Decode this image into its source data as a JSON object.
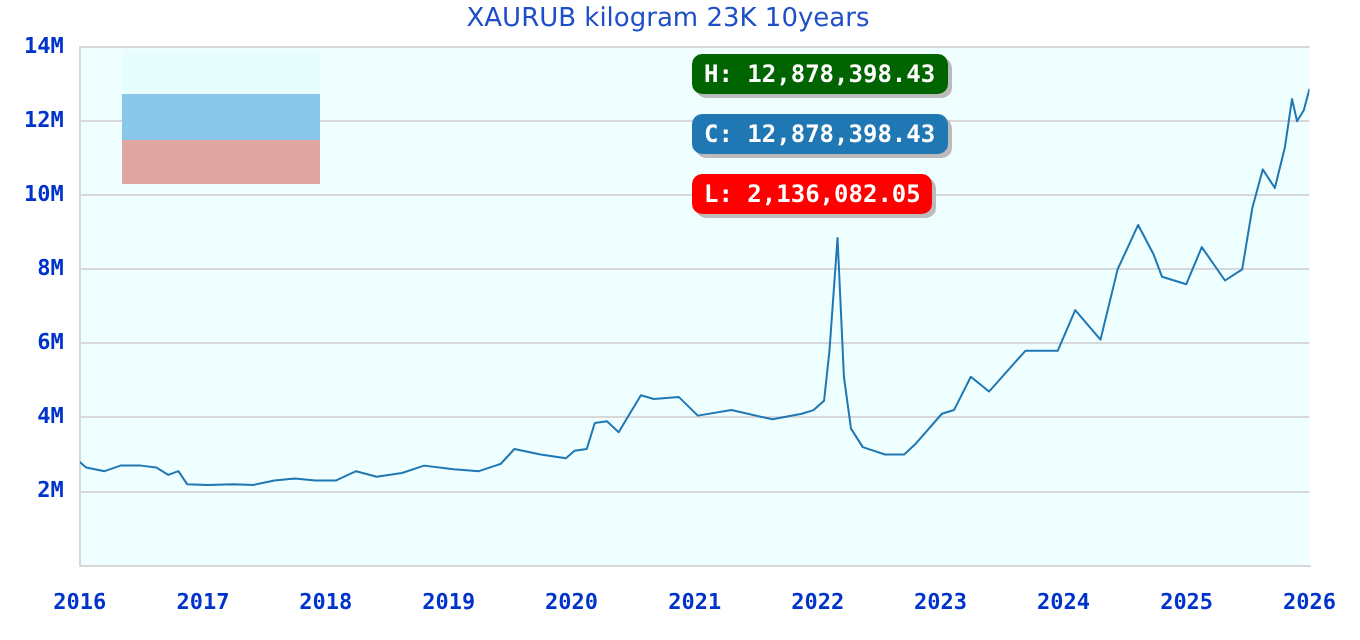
{
  "chart_data": {
    "type": "line",
    "title": "XAURUB kilogram 23K 10years",
    "x": [
      "2016-01-01",
      "2016-01-20",
      "2016-03-15",
      "2016-05-01",
      "2016-07-01",
      "2016-08-15",
      "2016-09-20",
      "2016-10-20",
      "2016-11-15",
      "2017-01-15",
      "2017-04-01",
      "2017-06-01",
      "2017-08-01",
      "2017-10-01",
      "2017-12-01",
      "2018-02-01",
      "2018-04-01",
      "2018-06-01",
      "2018-08-15",
      "2018-10-20",
      "2019-01-15",
      "2019-04-01",
      "2019-05-20",
      "2019-06-05",
      "2019-07-15",
      "2019-10-01",
      "2019-12-15",
      "2020-01-10",
      "2020-02-15",
      "2020-03-10",
      "2020-04-15",
      "2020-05-20",
      "2020-06-15",
      "2020-07-25",
      "2020-09-01",
      "2020-11-15",
      "2021-01-10",
      "2021-04-20",
      "2021-08-20",
      "2021-11-15",
      "2021-12-20",
      "2022-01-20",
      "2022-02-05",
      "2022-03-01",
      "2022-03-20",
      "2022-04-10",
      "2022-05-15",
      "2022-07-20",
      "2022-09-15",
      "2022-10-20",
      "2023-01-05",
      "2023-02-10",
      "2023-04-01",
      "2023-05-25",
      "2023-09-10",
      "2023-12-15",
      "2024-02-05",
      "2024-04-20",
      "2024-06-10",
      "2024-08-10",
      "2024-09-25",
      "2024-10-20",
      "2024-12-31",
      "2025-02-15",
      "2025-04-25",
      "2025-06-15",
      "2025-07-15",
      "2025-08-15",
      "2025-09-20",
      "2025-10-20",
      "2025-11-10",
      "2025-11-25",
      "2025-12-15",
      "2026-01-01"
    ],
    "series": [
      {
        "color": "#1f77b4",
        "values": [
          2800000,
          2650000,
          2550000,
          2700000,
          2700000,
          2650000,
          2450000,
          2550000,
          2200000,
          2180000,
          2200000,
          2180000,
          2300000,
          2350000,
          2300000,
          2300000,
          2550000,
          2400000,
          2500000,
          2700000,
          2600000,
          2550000,
          2700000,
          2750000,
          3150000,
          3000000,
          2900000,
          3100000,
          3150000,
          3850000,
          3900000,
          3600000,
          4000000,
          4600000,
          4500000,
          4550000,
          4050000,
          4200000,
          3950000,
          4100000,
          4200000,
          4450000,
          5800000,
          8850000,
          5100000,
          3700000,
          3200000,
          3000000,
          3000000,
          3300000,
          4100000,
          4200000,
          5100000,
          4700000,
          5800000,
          5800000,
          6900000,
          6100000,
          8000000,
          9200000,
          8400000,
          7800000,
          7600000,
          8600000,
          7700000,
          8000000,
          9650000,
          10700000,
          10200000,
          11300000,
          12600000,
          12000000,
          12300000,
          12878398
        ]
      }
    ],
    "annotations": [
      "H: 12,878,398.43",
      "C: 12,878,398.43",
      "L: 2,136,082.05"
    ],
    "xlim": [
      "2016-01-01",
      "2026-01-01"
    ],
    "xticks": [
      "2016",
      "2017",
      "2018",
      "2019",
      "2020",
      "2021",
      "2022",
      "2023",
      "2024",
      "2025",
      "2026"
    ],
    "ylim": [
      0,
      14000000
    ],
    "yticks": [
      {
        "value": 2000000,
        "label": "2M"
      },
      {
        "value": 4000000,
        "label": "4M"
      },
      {
        "value": 6000000,
        "label": "6M"
      },
      {
        "value": 8000000,
        "label": "8M"
      },
      {
        "value": 10000000,
        "label": "10M"
      },
      {
        "value": 12000000,
        "label": "12M"
      },
      {
        "value": 14000000,
        "label": "14M"
      }
    ],
    "grid": "y",
    "legend": false,
    "marker": "none",
    "line_style": "solid"
  }
}
